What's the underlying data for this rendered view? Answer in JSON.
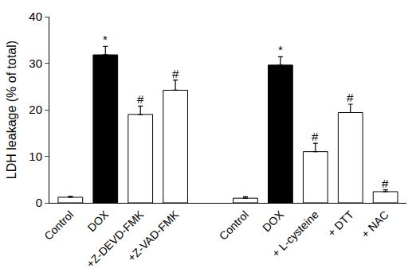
{
  "chart_data": {
    "type": "bar",
    "y_label": "LDH leakage (% of total)",
    "categories": [
      "Control",
      "DOX",
      "+Z-DEVD-FMK",
      "+Z-VAD-FMK",
      null,
      "Control",
      "DOX",
      "+ L-cysteine",
      "+ DTT",
      "+ NAC"
    ],
    "values": [
      1.2,
      31.8,
      19.0,
      24.2,
      null,
      1.0,
      29.6,
      11.0,
      19.4,
      2.4
    ],
    "errors": [
      0.2,
      1.8,
      1.8,
      2.2,
      null,
      0.3,
      1.8,
      1.8,
      1.8,
      0.4
    ],
    "annotations": [
      null,
      "*",
      "#",
      "#",
      null,
      null,
      "*",
      "#",
      "#",
      "#"
    ],
    "colors": [
      "#ffffff",
      "#000000",
      "#ffffff",
      "#ffffff",
      null,
      "#ffffff",
      "#000000",
      "#ffffff",
      "#ffffff",
      "#ffffff"
    ],
    "ylim": [
      0,
      40
    ],
    "yticks": [
      0,
      10,
      20,
      30,
      40
    ],
    "grid": false
  }
}
